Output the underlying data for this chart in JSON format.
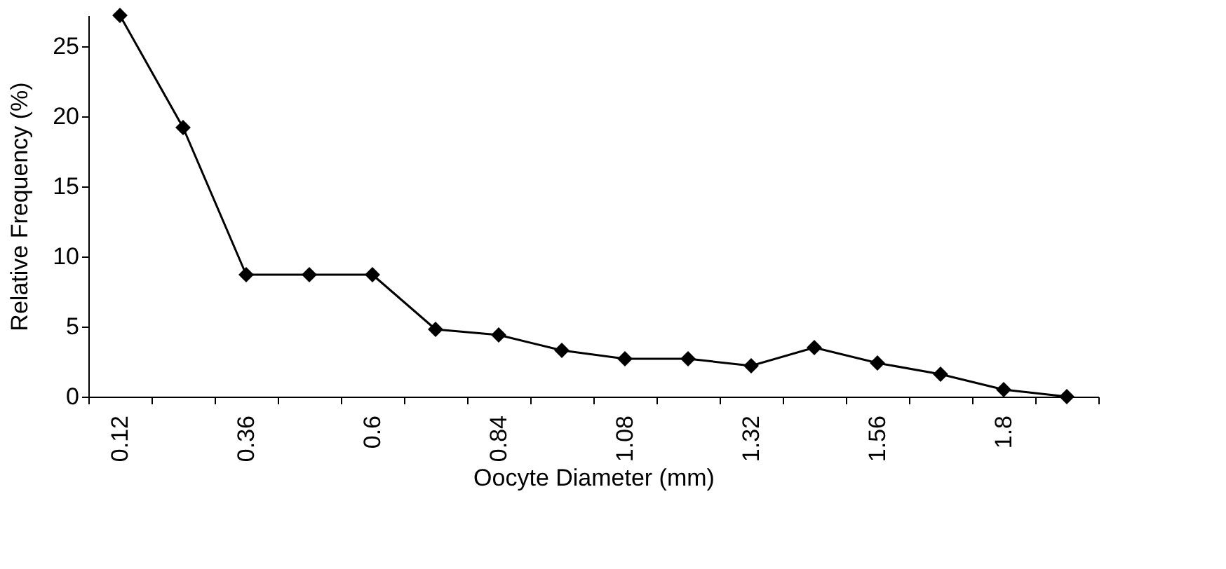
{
  "chart_data": {
    "type": "line",
    "xlabel": "Oocyte Diameter (mm)",
    "ylabel": "Relative Frequency (%)",
    "categories": [
      "0.12",
      null,
      "0.36",
      null,
      "0.6",
      null,
      "0.84",
      null,
      "1.08",
      null,
      "1.32",
      null,
      "1.56",
      null,
      "1.8",
      null
    ],
    "series": [
      {
        "color": "#000000",
        "values": [
          27.2,
          19.2,
          8.7,
          8.7,
          8.7,
          4.8,
          4.4,
          3.3,
          2.7,
          2.7,
          2.2,
          3.5,
          2.4,
          1.6,
          0.5,
          0
        ]
      }
    ],
    "ylim": [
      0,
      27.2
    ],
    "yticks": [
      0,
      5,
      10,
      15,
      20,
      25
    ],
    "grid": false,
    "marker": "diamond",
    "line_style": "solid",
    "legend": false
  }
}
